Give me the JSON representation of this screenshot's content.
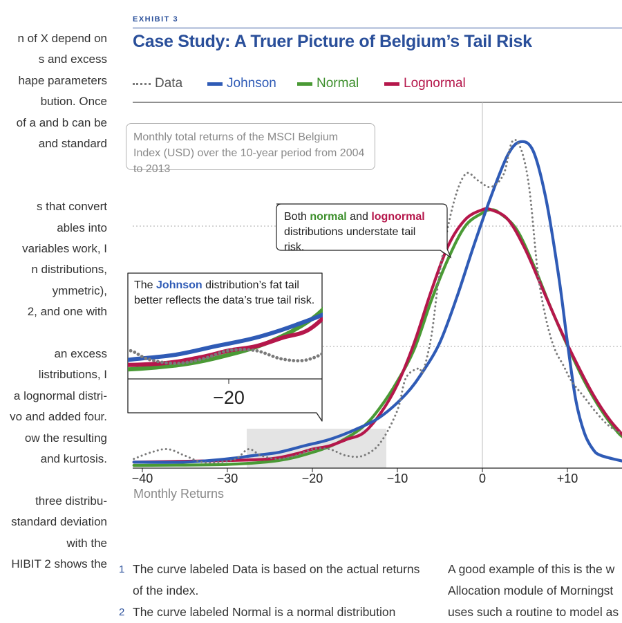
{
  "left_column_lines": [
    "n of X depend on",
    "s and excess",
    "hape parameters",
    "bution. Once",
    "of a and b can be",
    "and standard",
    "",
    "",
    "s that convert",
    "ables into",
    "variables work, I",
    "n distributions,",
    "ymmetric),",
    "2, and one with",
    "",
    "an excess",
    "listributions, I",
    "a lognormal distri-",
    "vo and added four.",
    "ow the resulting",
    "and kurtosis.",
    "",
    "three distribu-",
    "standard deviation",
    "with the",
    "HIBIT 2 shows the"
  ],
  "exhibit_tag": "EXHIBIT 3",
  "exhibit_title": "Case Study: A Truer Picture of Belgium’s Tail Risk",
  "legend": {
    "data": "Data",
    "johnson": "Johnson",
    "normal": "Normal",
    "lognormal": "Lognormal"
  },
  "colors": {
    "data": "#7a7a7a",
    "johnson": "#2f5bb6",
    "normal": "#4a9a35",
    "lognormal": "#b5174b",
    "accent": "#2a4f9a"
  },
  "note": "Monthly total returns of the MSCI Belgium Index (USD) over the 10-year period from 2004 to 2013",
  "callout_understate": {
    "pre": "Both",
    "normal": "normal",
    "mid": "and",
    "lognormal": "lognormal",
    "post": "distributions understate tail risk."
  },
  "callout_johnson": {
    "pre": "The",
    "johnson": "Johnson",
    "post": "distribution’s fat tail better reflects the data’s true tail risk."
  },
  "inset_tick": "−20",
  "footnotes": [
    {
      "num": "1",
      "text": "The curve labeled Data is based on the actual returns of the index."
    },
    {
      "num": "2",
      "text": "The curve labeled Normal is a normal distribution"
    }
  ],
  "right_column_lines": [
    "A good example of this is the w",
    "Allocation module of Morningst",
    "uses such a routine to model as"
  ],
  "chart_data": {
    "type": "line",
    "title": "Case Study: A Truer Picture of Belgium’s Tail Risk",
    "xlabel": "Monthly Returns",
    "ylabel": "",
    "xlim": [
      -41,
      17
    ],
    "ylim": [
      0,
      1.05
    ],
    "x_ticks": [
      -40,
      -30,
      -20,
      -10,
      0,
      10
    ],
    "x_tick_labels": [
      "−40",
      "−30",
      "−20",
      "−10",
      "0",
      "+10"
    ],
    "grid": "dotted horizontal",
    "legend_position": "top",
    "series": [
      {
        "name": "Data",
        "key": "data",
        "style": "dotted",
        "points": [
          [
            -41,
            0.02
          ],
          [
            -39,
            0.04
          ],
          [
            -37,
            0.05
          ],
          [
            -35,
            0.03
          ],
          [
            -33,
            0.01
          ],
          [
            -31,
            0.01
          ],
          [
            -29,
            0.02
          ],
          [
            -27.5,
            0.05
          ],
          [
            -26,
            0.03
          ],
          [
            -24,
            0.02
          ],
          [
            -22,
            0.03
          ],
          [
            -20,
            0.05
          ],
          [
            -18,
            0.05
          ],
          [
            -16,
            0.03
          ],
          [
            -14,
            0.03
          ],
          [
            -12,
            0.07
          ],
          [
            -10,
            0.17
          ],
          [
            -9,
            0.27
          ],
          [
            -7.5,
            0.3
          ],
          [
            -7,
            0.29
          ],
          [
            -6,
            0.4
          ],
          [
            -5,
            0.6
          ],
          [
            -3.5,
            0.8
          ],
          [
            -2,
            0.9
          ],
          [
            -0.5,
            0.88
          ],
          [
            1,
            0.86
          ],
          [
            2.5,
            0.9
          ],
          [
            3.5,
            1.0
          ],
          [
            4.5,
            0.98
          ],
          [
            5.5,
            0.86
          ],
          [
            6.5,
            0.6
          ],
          [
            7.5,
            0.45
          ],
          [
            8.5,
            0.36
          ],
          [
            9.5,
            0.31
          ],
          [
            10.5,
            0.26
          ],
          [
            12,
            0.21
          ],
          [
            13.5,
            0.16
          ],
          [
            15,
            0.12
          ],
          [
            17,
            0.09
          ]
        ]
      },
      {
        "name": "Johnson",
        "key": "johnson",
        "style": "solid",
        "points": [
          [
            -41,
            0.01
          ],
          [
            -35,
            0.01
          ],
          [
            -30,
            0.02
          ],
          [
            -27,
            0.03
          ],
          [
            -24,
            0.04
          ],
          [
            -21,
            0.06
          ],
          [
            -18,
            0.08
          ],
          [
            -15,
            0.11
          ],
          [
            -12,
            0.15
          ],
          [
            -9,
            0.22
          ],
          [
            -7,
            0.29
          ],
          [
            -5,
            0.38
          ],
          [
            -3,
            0.52
          ],
          [
            -1,
            0.68
          ],
          [
            1,
            0.83
          ],
          [
            3,
            0.96
          ],
          [
            4.5,
            1.0
          ],
          [
            6,
            0.97
          ],
          [
            7.5,
            0.82
          ],
          [
            9,
            0.58
          ],
          [
            10,
            0.38
          ],
          [
            11,
            0.2
          ],
          [
            12,
            0.1
          ],
          [
            13,
            0.05
          ],
          [
            14,
            0.03
          ],
          [
            17,
            0.01
          ]
        ]
      },
      {
        "name": "Normal",
        "key": "normal",
        "style": "solid",
        "points": [
          [
            -41,
            0
          ],
          [
            -30,
            0.003
          ],
          [
            -24,
            0.015
          ],
          [
            -20,
            0.04
          ],
          [
            -17,
            0.07
          ],
          [
            -14,
            0.12
          ],
          [
            -12,
            0.18
          ],
          [
            -10,
            0.26
          ],
          [
            -8,
            0.36
          ],
          [
            -6,
            0.51
          ],
          [
            -4,
            0.64
          ],
          [
            -2,
            0.74
          ],
          [
            0,
            0.78
          ],
          [
            1,
            0.79
          ],
          [
            2,
            0.78
          ],
          [
            4,
            0.73
          ],
          [
            6,
            0.62
          ],
          [
            8,
            0.49
          ],
          [
            10,
            0.37
          ],
          [
            12,
            0.26
          ],
          [
            14,
            0.17
          ],
          [
            16,
            0.1
          ],
          [
            17,
            0.08
          ]
        ]
      },
      {
        "name": "Lognormal",
        "key": "lognormal",
        "style": "solid",
        "points": [
          [
            -41,
            0.01
          ],
          [
            -30,
            0.015
          ],
          [
            -25,
            0.02
          ],
          [
            -22,
            0.035
          ],
          [
            -20,
            0.05
          ],
          [
            -18,
            0.06
          ],
          [
            -16,
            0.08
          ],
          [
            -14,
            0.1
          ],
          [
            -12,
            0.16
          ],
          [
            -10,
            0.25
          ],
          [
            -8,
            0.38
          ],
          [
            -6,
            0.54
          ],
          [
            -4,
            0.68
          ],
          [
            -2,
            0.76
          ],
          [
            0,
            0.79
          ],
          [
            1,
            0.79
          ],
          [
            3,
            0.76
          ],
          [
            5,
            0.67
          ],
          [
            7,
            0.55
          ],
          [
            9,
            0.43
          ],
          [
            11,
            0.32
          ],
          [
            13,
            0.22
          ],
          [
            15,
            0.14
          ],
          [
            17,
            0.08
          ]
        ]
      }
    ]
  }
}
